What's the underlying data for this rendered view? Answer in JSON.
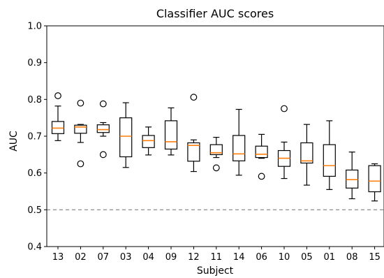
{
  "chart_data": {
    "type": "boxplot",
    "title": "Classifier AUC scores",
    "xlabel": "Subject",
    "ylabel": "AUC",
    "ylim": [
      0.4,
      1.0
    ],
    "yticks": [
      0.4,
      0.5,
      0.6,
      0.7,
      0.8,
      0.9,
      1.0
    ],
    "ytick_labels": [
      "0.4",
      "0.5",
      "0.6",
      "0.7",
      "0.8",
      "0.9",
      "1.0"
    ],
    "reference_line": {
      "y": 0.5,
      "style": "dashed",
      "color": "#808080"
    },
    "median_color": "#ff7f0e",
    "grid": false,
    "categories": [
      "13",
      "02",
      "07",
      "03",
      "04",
      "09",
      "12",
      "11",
      "14",
      "06",
      "10",
      "05",
      "01",
      "08",
      "15"
    ],
    "boxes": [
      {
        "subject": "13",
        "whisker_low": 0.688,
        "q1": 0.707,
        "median": 0.722,
        "q3": 0.74,
        "whisker_high": 0.782,
        "fliers": [
          0.81
        ]
      },
      {
        "subject": "02",
        "whisker_low": 0.683,
        "q1": 0.708,
        "median": 0.725,
        "q3": 0.73,
        "whisker_high": 0.732,
        "fliers": [
          0.79,
          0.625
        ]
      },
      {
        "subject": "07",
        "whisker_low": 0.7,
        "q1": 0.71,
        "median": 0.718,
        "q3": 0.731,
        "whisker_high": 0.737,
        "fliers": [
          0.788,
          0.65
        ]
      },
      {
        "subject": "03",
        "whisker_low": 0.615,
        "q1": 0.644,
        "median": 0.7,
        "q3": 0.75,
        "whisker_high": 0.791,
        "fliers": []
      },
      {
        "subject": "04",
        "whisker_low": 0.649,
        "q1": 0.669,
        "median": 0.688,
        "q3": 0.702,
        "whisker_high": 0.725,
        "fliers": []
      },
      {
        "subject": "09",
        "whisker_low": 0.649,
        "q1": 0.665,
        "median": 0.685,
        "q3": 0.742,
        "whisker_high": 0.777,
        "fliers": []
      },
      {
        "subject": "12",
        "whisker_low": 0.604,
        "q1": 0.632,
        "median": 0.675,
        "q3": 0.682,
        "whisker_high": 0.69,
        "fliers": [
          0.806
        ]
      },
      {
        "subject": "11",
        "whisker_low": 0.642,
        "q1": 0.65,
        "median": 0.655,
        "q3": 0.677,
        "whisker_high": 0.697,
        "fliers": [
          0.614
        ]
      },
      {
        "subject": "14",
        "whisker_low": 0.594,
        "q1": 0.633,
        "median": 0.652,
        "q3": 0.702,
        "whisker_high": 0.773,
        "fliers": []
      },
      {
        "subject": "06",
        "whisker_low": 0.64,
        "q1": 0.642,
        "median": 0.651,
        "q3": 0.673,
        "whisker_high": 0.705,
        "fliers": [
          0.591
        ]
      },
      {
        "subject": "10",
        "whisker_low": 0.585,
        "q1": 0.618,
        "median": 0.64,
        "q3": 0.661,
        "whisker_high": 0.684,
        "fliers": [
          0.775
        ]
      },
      {
        "subject": "05",
        "whisker_low": 0.567,
        "q1": 0.627,
        "median": 0.633,
        "q3": 0.682,
        "whisker_high": 0.732,
        "fliers": []
      },
      {
        "subject": "01",
        "whisker_low": 0.555,
        "q1": 0.591,
        "median": 0.62,
        "q3": 0.677,
        "whisker_high": 0.742,
        "fliers": []
      },
      {
        "subject": "08",
        "whisker_low": 0.53,
        "q1": 0.559,
        "median": 0.582,
        "q3": 0.608,
        "whisker_high": 0.657,
        "fliers": []
      },
      {
        "subject": "15",
        "whisker_low": 0.524,
        "q1": 0.549,
        "median": 0.578,
        "q3": 0.62,
        "whisker_high": 0.625,
        "fliers": []
      }
    ]
  }
}
